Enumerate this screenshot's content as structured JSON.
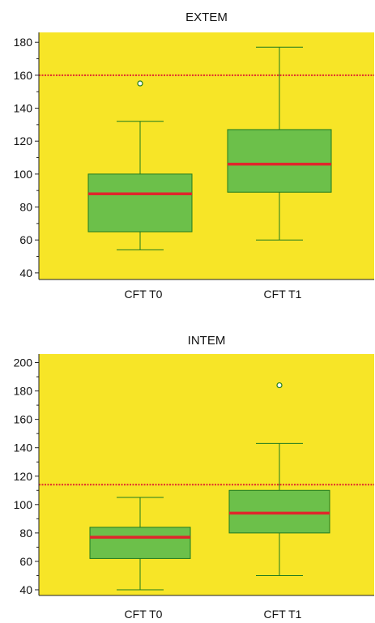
{
  "colors": {
    "plot_background": "#f7e527",
    "box_fill": "#6cc04a",
    "box_stroke": "#1f7a1f",
    "median": "#e0262b",
    "reference_line": "#e0262b",
    "outlier_fill": "#ffffff",
    "axis": "#222222"
  },
  "chart_data": [
    {
      "type": "box",
      "title": "EXTEM",
      "categories": [
        "CFT T0",
        "CFT T1"
      ],
      "ylim": [
        36,
        186
      ],
      "yticks": [
        40,
        60,
        80,
        100,
        120,
        140,
        160,
        180
      ],
      "reference_line": 160,
      "boxes": [
        {
          "category": "CFT T0",
          "whisker_low": 54,
          "q1": 65,
          "median": 88,
          "q3": 100,
          "whisker_high": 132,
          "outliers": [
            155
          ]
        },
        {
          "category": "CFT T1",
          "whisker_low": 60,
          "q1": 89,
          "median": 106,
          "q3": 127,
          "whisker_high": 177,
          "outliers": []
        }
      ]
    },
    {
      "type": "box",
      "title": "INTEM",
      "categories": [
        "CFT T0",
        "CFT T1"
      ],
      "ylim": [
        36,
        206
      ],
      "yticks": [
        40,
        60,
        80,
        100,
        120,
        140,
        160,
        180,
        200
      ],
      "reference_line": 114,
      "boxes": [
        {
          "category": "CFT T0",
          "whisker_low": 40,
          "q1": 62,
          "median": 77,
          "q3": 84,
          "whisker_high": 105,
          "outliers": []
        },
        {
          "category": "CFT T1",
          "whisker_low": 50,
          "q1": 80,
          "median": 94,
          "q3": 110,
          "whisker_high": 143,
          "outliers": [
            184
          ]
        }
      ]
    }
  ]
}
